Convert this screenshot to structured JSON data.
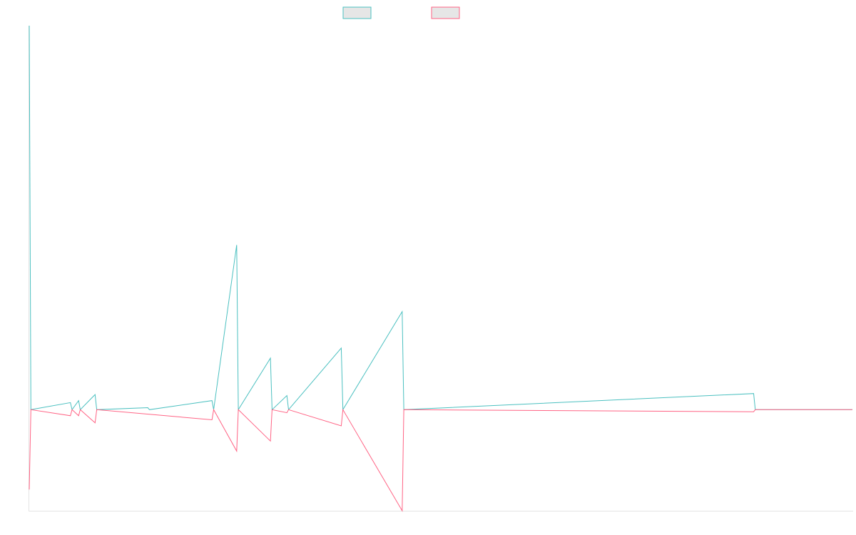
{
  "colors": {
    "series_a": "#4bc0c0",
    "series_b": "#ff6384",
    "legend_fill": "#e6e6e6",
    "axis": "#e4e4e4"
  },
  "chart_data": {
    "type": "line",
    "title": "",
    "xlabel": "",
    "ylabel": "",
    "legend_position": "top-center",
    "grid": false,
    "xlim": [
      0,
      100
    ],
    "ylim": [
      -10,
      38
    ],
    "baseline": 0,
    "series": [
      {
        "color": "#4bc0c0",
        "x": [
          0,
          0.2,
          5,
          5.2,
          6,
          6.2,
          8,
          8.2,
          14.4,
          14.6,
          22.2,
          22.4,
          25.2,
          25.4,
          29.3,
          29.5,
          31.3,
          31.5,
          37.9,
          38.1,
          45.3,
          45.5,
          88,
          88.2,
          100
        ],
        "y": [
          38,
          0,
          0.7,
          0,
          0.9,
          0,
          1.5,
          0,
          0.2,
          0,
          0.9,
          0,
          16.3,
          0,
          5.1,
          0,
          1.4,
          0,
          6.1,
          0,
          9.7,
          0,
          1.6,
          0,
          0
        ]
      },
      {
        "color": "#ff6384",
        "x": [
          0,
          0.2,
          5,
          5.2,
          6,
          6.2,
          8,
          8.2,
          22.2,
          22.4,
          25.2,
          25.4,
          29.3,
          29.5,
          31.3,
          31.5,
          37.9,
          38.1,
          45.3,
          45.5,
          88,
          88.2,
          100
        ],
        "y": [
          -7.9,
          0,
          -0.6,
          0,
          -0.6,
          0,
          -1.3,
          0,
          -1,
          0,
          -4.1,
          0,
          -3.1,
          0,
          -0.3,
          0,
          -1.6,
          0,
          -10,
          0,
          -0.2,
          0,
          0
        ]
      }
    ]
  }
}
